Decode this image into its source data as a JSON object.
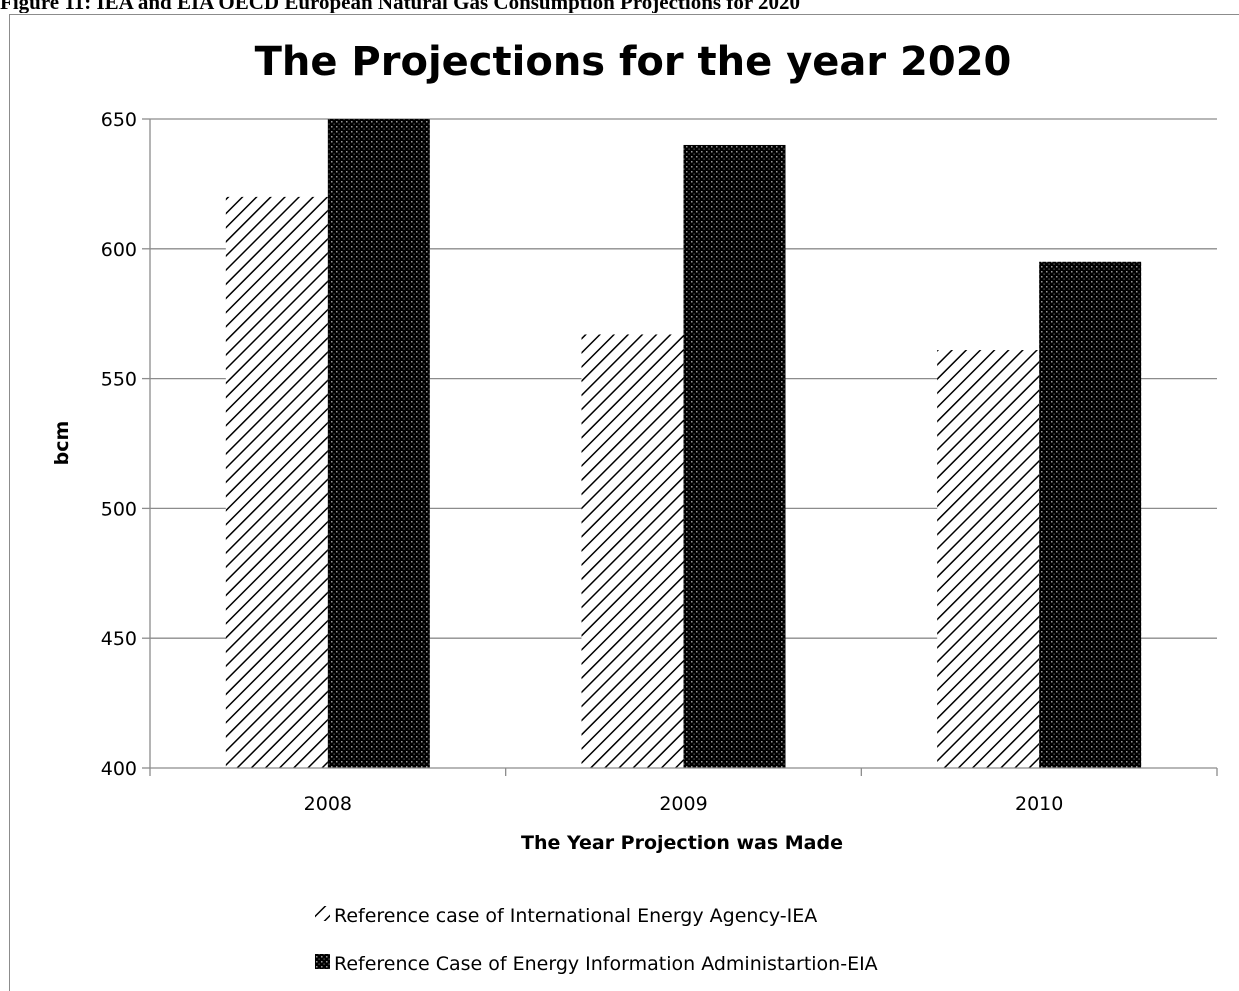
{
  "document": {
    "caption": "Figure 11: IEA and EIA OECD European Natural Gas Consumption Projections for 2020"
  },
  "colors": {
    "gridline": "#8c8c8c",
    "axis": "#8c8c8c",
    "series_iea": "#000000",
    "series_eia": "#000000"
  },
  "chart_data": {
    "type": "bar",
    "title": "The Projections for the year 2020",
    "xlabel": "The Year Projection was Made",
    "ylabel": "bcm",
    "categories": [
      "2008",
      "2009",
      "2010"
    ],
    "ylim": [
      400,
      650
    ],
    "yticks": [
      400,
      450,
      500,
      550,
      600,
      650
    ],
    "grid": true,
    "legend_position": "bottom",
    "series": [
      {
        "name": "Reference case of International Energy Agency-IEA",
        "pattern": "diagonal-hatch",
        "values": [
          620,
          567,
          561
        ]
      },
      {
        "name": "Reference Case of Energy Information Administartion-EIA",
        "pattern": "dotted-dark",
        "values": [
          650,
          640,
          595
        ]
      }
    ]
  }
}
